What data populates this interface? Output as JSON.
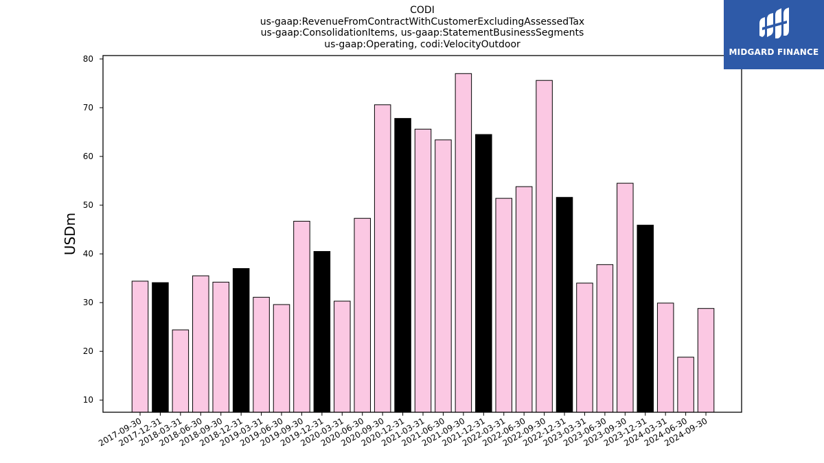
{
  "chart_data": {
    "type": "bar",
    "title_lines": [
      "CODI",
      "us-gaap:RevenueFromContractWithCustomerExcludingAssessedTax",
      "us-gaap:ConsolidationItems, us-gaap:StatementBusinessSegments",
      "us-gaap:Operating, codi:VelocityOutdoor"
    ],
    "xlabel": "",
    "ylabel": "USDm",
    "ylim": [
      7.5,
      80.7
    ],
    "yticks": [
      10,
      20,
      30,
      40,
      50,
      60,
      70,
      80
    ],
    "grid": false,
    "categories": [
      "2017-09-30",
      "2017-12-31",
      "2018-03-31",
      "2018-06-30",
      "2018-09-30",
      "2018-12-31",
      "2019-03-31",
      "2019-06-30",
      "2019-09-30",
      "2019-12-31",
      "2020-03-31",
      "2020-06-30",
      "2020-09-30",
      "2020-12-31",
      "2021-03-31",
      "2021-06-30",
      "2021-09-30",
      "2021-12-31",
      "2022-03-31",
      "2022-06-30",
      "2022-09-30",
      "2022-12-31",
      "2023-03-31",
      "2023-06-30",
      "2023-09-30",
      "2023-12-31",
      "2024-03-31",
      "2024-06-30",
      "2024-09-30"
    ],
    "values": [
      34.4,
      34.1,
      24.4,
      35.5,
      34.2,
      37.0,
      31.1,
      29.6,
      46.7,
      40.5,
      30.3,
      47.3,
      70.6,
      67.8,
      65.6,
      63.4,
      77.0,
      64.5,
      51.4,
      53.8,
      75.6,
      51.6,
      34.0,
      37.8,
      54.5,
      45.9,
      29.9,
      18.8,
      28.8
    ],
    "bar_colors": [
      "#fbc8e3",
      "#000000",
      "#fbc8e3",
      "#fbc8e3",
      "#fbc8e3",
      "#000000",
      "#fbc8e3",
      "#fbc8e3",
      "#fbc8e3",
      "#000000",
      "#fbc8e3",
      "#fbc8e3",
      "#fbc8e3",
      "#000000",
      "#fbc8e3",
      "#fbc8e3",
      "#fbc8e3",
      "#000000",
      "#fbc8e3",
      "#fbc8e3",
      "#fbc8e3",
      "#000000",
      "#fbc8e3",
      "#fbc8e3",
      "#fbc8e3",
      "#000000",
      "#fbc8e3",
      "#fbc8e3",
      "#fbc8e3"
    ]
  },
  "logo": {
    "text": "MIDGARD FINANCE",
    "background": "#2e5aa8"
  }
}
